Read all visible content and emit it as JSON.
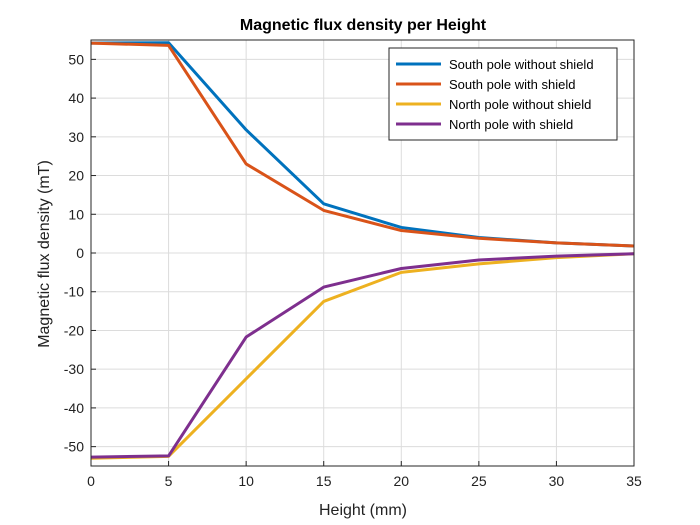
{
  "chart_data": {
    "type": "line",
    "title": "Magnetic flux density per Height",
    "xlabel": "Height (mm)",
    "ylabel": "Magnetic flux density (mT)",
    "xlim": [
      0,
      35
    ],
    "ylim": [
      -55,
      55
    ],
    "xticks": [
      0,
      5,
      10,
      15,
      20,
      25,
      30,
      35
    ],
    "yticks": [
      -50,
      -40,
      -30,
      -20,
      -10,
      0,
      10,
      20,
      30,
      40,
      50
    ],
    "grid": true,
    "legend_position": "top-right",
    "x": [
      0,
      5,
      10,
      15,
      20,
      25,
      30,
      35
    ],
    "series": [
      {
        "name": "South pole without shield",
        "color": "#0072BD",
        "values": [
          54.2,
          54.3,
          31.8,
          12.7,
          6.6,
          4.0,
          2.6,
          1.8
        ]
      },
      {
        "name": "South pole with shield",
        "color": "#D95319",
        "values": [
          54.2,
          53.6,
          23.0,
          11.0,
          5.8,
          3.8,
          2.6,
          1.8
        ]
      },
      {
        "name": "North pole without shield",
        "color": "#EDB120",
        "values": [
          -53.0,
          -52.5,
          -32.5,
          -12.5,
          -5.0,
          -2.8,
          -1.2,
          -0.2
        ]
      },
      {
        "name": "North pole with shield",
        "color": "#7E2F8E",
        "values": [
          -52.7,
          -52.4,
          -21.7,
          -8.8,
          -4.0,
          -1.8,
          -0.8,
          -0.2
        ]
      }
    ]
  }
}
